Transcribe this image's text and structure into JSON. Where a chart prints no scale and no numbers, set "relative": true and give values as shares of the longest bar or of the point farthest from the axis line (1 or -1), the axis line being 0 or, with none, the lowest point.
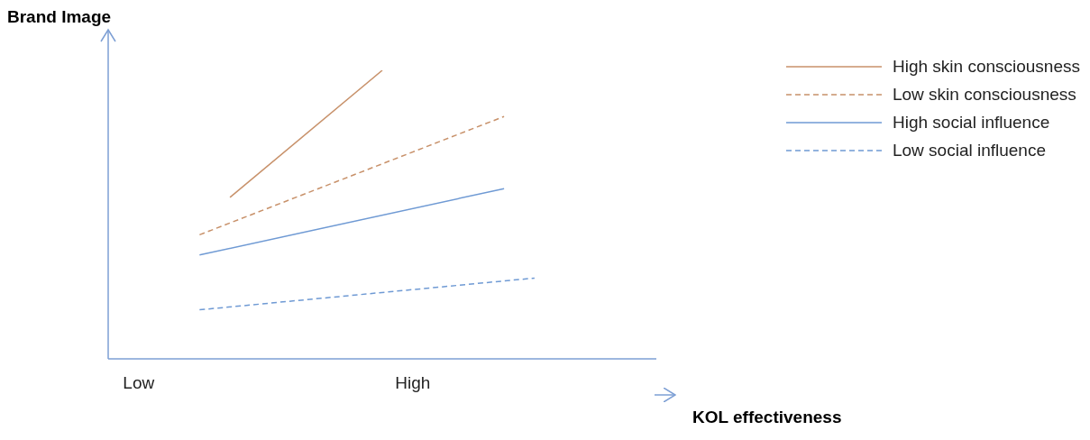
{
  "chart_data": {
    "type": "line",
    "xlabel": "KOL effectiveness",
    "ylabel": "Brand Image",
    "relative": true,
    "grid": false,
    "legend": "top right",
    "marker": "none",
    "categories": [
      null,
      "Low",
      null,
      null,
      null,
      null,
      null,
      null,
      null,
      null,
      "High",
      null,
      null,
      null,
      null,
      null,
      null,
      null,
      null
    ],
    "series": [
      {
        "name": "High skin consciousness",
        "color": "#c8916a",
        "line_style": "solid",
        "values": [
          null,
          null,
          null,
          null,
          0.56,
          null,
          null,
          null,
          null,
          1,
          null,
          null,
          null,
          null,
          null,
          null,
          null,
          null,
          null
        ]
      },
      {
        "name": "Low skin consciousness",
        "color": "#c8916a",
        "line_style": "dashed",
        "values": [
          null,
          null,
          null,
          0.43,
          null,
          null,
          null,
          null,
          null,
          null,
          null,
          null,
          null,
          0.84,
          null,
          null,
          null,
          null,
          null
        ]
      },
      {
        "name": "High social influence",
        "color": "#6f9ad4",
        "line_style": "solid",
        "values": [
          null,
          null,
          null,
          0.36,
          null,
          null,
          null,
          null,
          null,
          null,
          null,
          null,
          null,
          0.59,
          null,
          null,
          null,
          null,
          null
        ]
      },
      {
        "name": "Low social influence",
        "color": "#6f9ad4",
        "line_style": "dashed",
        "values": [
          null,
          null,
          null,
          0.17,
          null,
          null,
          null,
          null,
          null,
          null,
          null,
          null,
          null,
          null,
          0.28,
          null,
          null,
          null,
          null
        ]
      }
    ]
  }
}
